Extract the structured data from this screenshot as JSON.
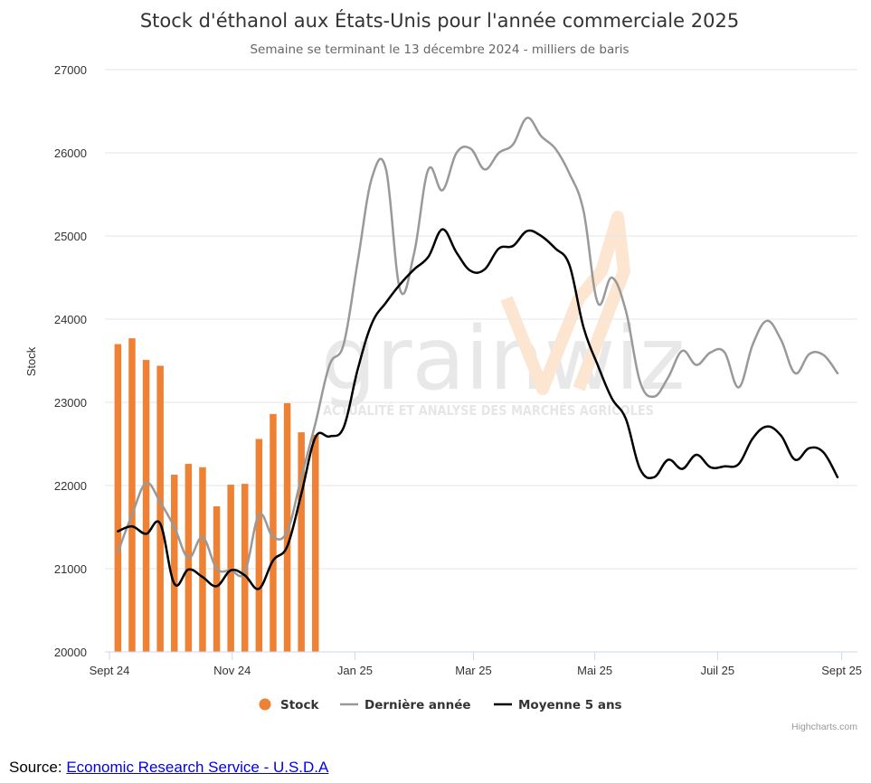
{
  "chart_data": {
    "type": "bar+line",
    "title": "Stock d'éthanol aux États-Unis pour l'année commerciale 2025",
    "subtitle": "Semaine se terminant le 13 décembre 2024 - milliers de baris",
    "ylabel": "Stock",
    "ylim": [
      20000,
      27000
    ],
    "yticks": [
      "20000",
      "21000",
      "22000",
      "23000",
      "24000",
      "25000",
      "26000",
      "27000"
    ],
    "xticks": [
      {
        "label": "Sept 24",
        "week": 0
      },
      {
        "label": "Nov 24",
        "week": 8.7
      },
      {
        "label": "Jan 25",
        "week": 17.4
      },
      {
        "label": "Mar 25",
        "week": 25.8
      },
      {
        "label": "Mai 25",
        "week": 34.4
      },
      {
        "label": "Juil 25",
        "week": 43.1
      },
      {
        "label": "Sept 25",
        "week": 51.9
      }
    ],
    "x_unit": "weeks since Sept 24",
    "legend_position": "bottom-center",
    "grid": true,
    "series": [
      {
        "name": "Stock",
        "kind": "bar",
        "color": "#ee8134",
        "x": [
          0.6,
          1.6,
          2.6,
          3.6,
          4.6,
          5.6,
          6.6,
          7.6,
          8.6,
          9.6,
          10.6,
          11.6,
          12.6,
          13.6,
          14.6
        ],
        "values": [
          23700,
          23770,
          23510,
          23440,
          22130,
          22260,
          22220,
          21750,
          22010,
          22020,
          22560,
          22860,
          22990,
          22640,
          22610
        ]
      },
      {
        "name": "Dernière année",
        "kind": "line",
        "color": "#999999",
        "points": [
          [
            0.6,
            21200
          ],
          [
            1.6,
            21650
          ],
          [
            2.6,
            22030
          ],
          [
            3.6,
            21800
          ],
          [
            4.6,
            21500
          ],
          [
            5.6,
            21130
          ],
          [
            6.6,
            21380
          ],
          [
            7.6,
            21000
          ],
          [
            8.6,
            20980
          ],
          [
            9.6,
            20960
          ],
          [
            10.6,
            21650
          ],
          [
            11.6,
            21380
          ],
          [
            12.6,
            21450
          ],
          [
            13.6,
            22100
          ],
          [
            14.6,
            22750
          ],
          [
            15.6,
            23450
          ],
          [
            16.6,
            23700
          ],
          [
            17.6,
            24700
          ],
          [
            18.6,
            25700
          ],
          [
            19.6,
            25800
          ],
          [
            20.6,
            24350
          ],
          [
            21.6,
            24800
          ],
          [
            22.6,
            25800
          ],
          [
            23.6,
            25550
          ],
          [
            24.6,
            26000
          ],
          [
            25.6,
            26050
          ],
          [
            26.6,
            25800
          ],
          [
            27.6,
            26000
          ],
          [
            28.6,
            26100
          ],
          [
            29.6,
            26420
          ],
          [
            30.6,
            26200
          ],
          [
            31.6,
            26050
          ],
          [
            32.6,
            25750
          ],
          [
            33.6,
            25300
          ],
          [
            34.6,
            24200
          ],
          [
            35.6,
            24500
          ],
          [
            36.6,
            24100
          ],
          [
            37.6,
            23250
          ],
          [
            38.6,
            23070
          ],
          [
            39.6,
            23300
          ],
          [
            40.6,
            23620
          ],
          [
            41.6,
            23450
          ],
          [
            42.6,
            23600
          ],
          [
            43.6,
            23600
          ],
          [
            44.6,
            23180
          ],
          [
            45.6,
            23700
          ],
          [
            46.6,
            23980
          ],
          [
            47.6,
            23750
          ],
          [
            48.6,
            23350
          ],
          [
            49.6,
            23580
          ],
          [
            50.6,
            23570
          ],
          [
            51.6,
            23350
          ]
        ]
      },
      {
        "name": "Moyenne 5 ans",
        "kind": "line",
        "color": "#000000",
        "points": [
          [
            0.6,
            21450
          ],
          [
            1.6,
            21510
          ],
          [
            2.6,
            21420
          ],
          [
            3.6,
            21540
          ],
          [
            4.6,
            20820
          ],
          [
            5.6,
            20990
          ],
          [
            6.6,
            20900
          ],
          [
            7.6,
            20790
          ],
          [
            8.6,
            20980
          ],
          [
            9.6,
            20920
          ],
          [
            10.6,
            20760
          ],
          [
            11.6,
            21100
          ],
          [
            12.6,
            21270
          ],
          [
            13.6,
            21900
          ],
          [
            14.6,
            22580
          ],
          [
            15.6,
            22590
          ],
          [
            16.6,
            22700
          ],
          [
            17.6,
            23400
          ],
          [
            18.6,
            23950
          ],
          [
            19.6,
            24200
          ],
          [
            20.6,
            24420
          ],
          [
            21.6,
            24600
          ],
          [
            22.6,
            24750
          ],
          [
            23.6,
            25080
          ],
          [
            24.6,
            24800
          ],
          [
            25.6,
            24580
          ],
          [
            26.6,
            24600
          ],
          [
            27.6,
            24850
          ],
          [
            28.6,
            24880
          ],
          [
            29.6,
            25060
          ],
          [
            30.6,
            25000
          ],
          [
            31.6,
            24850
          ],
          [
            32.6,
            24650
          ],
          [
            33.6,
            23900
          ],
          [
            34.6,
            23450
          ],
          [
            35.6,
            23050
          ],
          [
            36.6,
            22800
          ],
          [
            37.6,
            22200
          ],
          [
            38.6,
            22100
          ],
          [
            39.6,
            22310
          ],
          [
            40.6,
            22200
          ],
          [
            41.6,
            22370
          ],
          [
            42.6,
            22220
          ],
          [
            43.6,
            22230
          ],
          [
            44.6,
            22260
          ],
          [
            45.6,
            22570
          ],
          [
            46.6,
            22710
          ],
          [
            47.6,
            22600
          ],
          [
            48.6,
            22310
          ],
          [
            49.6,
            22450
          ],
          [
            50.6,
            22400
          ],
          [
            51.6,
            22100
          ]
        ]
      }
    ],
    "legend": [
      {
        "label": "Stock",
        "symbol": "circle",
        "color": "#ee8134"
      },
      {
        "label": "Dernière année",
        "symbol": "line",
        "color": "#999999"
      },
      {
        "label": "Moyenne 5 ans",
        "symbol": "line",
        "color": "#000000"
      }
    ],
    "credits": "Highcharts.com",
    "watermark": {
      "word": "grainwiz",
      "tagline": "ACTUALITÉ ET ANALYSE DES MARCHÉS AGRICOLES"
    }
  },
  "source": {
    "prefix": "Source: ",
    "link_text": "Economic Research Service - U.S.D.A"
  }
}
